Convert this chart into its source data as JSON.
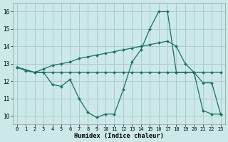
{
  "xlabel": "Humidex (Indice chaleur)",
  "background_color": "#cce8e8",
  "grid_color": "#aacccc",
  "line_color": "#1a7060",
  "xlim": [
    -0.5,
    23.5
  ],
  "ylim": [
    9.5,
    16.5
  ],
  "xticks": [
    0,
    1,
    2,
    3,
    4,
    5,
    6,
    7,
    8,
    9,
    10,
    11,
    12,
    13,
    14,
    15,
    16,
    17,
    18,
    19,
    20,
    21,
    22,
    23
  ],
  "yticks": [
    10,
    11,
    12,
    13,
    14,
    15,
    16
  ],
  "line1_x": [
    0,
    1,
    2,
    3,
    4,
    5,
    6,
    7,
    8,
    9,
    10,
    11,
    12,
    13,
    14,
    15,
    16,
    17,
    18,
    19,
    20,
    21,
    22,
    23
  ],
  "line1_y": [
    12.8,
    12.6,
    12.5,
    12.5,
    12.5,
    12.5,
    12.5,
    12.5,
    12.5,
    12.5,
    12.5,
    12.5,
    12.5,
    12.5,
    12.5,
    12.5,
    12.5,
    12.5,
    12.5,
    12.5,
    12.5,
    12.5,
    12.5,
    12.5
  ],
  "line2_x": [
    0,
    2,
    3,
    4,
    5,
    6,
    7,
    8,
    9,
    10,
    11,
    12,
    13,
    14,
    15,
    16,
    17,
    18,
    20,
    21,
    22,
    23
  ],
  "line2_y": [
    12.8,
    12.5,
    12.5,
    11.8,
    11.7,
    12.1,
    11.0,
    10.2,
    9.9,
    10.1,
    10.1,
    11.5,
    13.1,
    13.8,
    15.0,
    16.0,
    16.0,
    12.5,
    12.5,
    11.9,
    11.9,
    10.1
  ],
  "line3_x": [
    0,
    2,
    3,
    4,
    5,
    6,
    7,
    8,
    9,
    10,
    11,
    12,
    13,
    14,
    15,
    16,
    17,
    18,
    19,
    20,
    21,
    22,
    23
  ],
  "line3_y": [
    12.8,
    12.5,
    12.7,
    12.9,
    13.0,
    13.1,
    13.3,
    13.4,
    13.5,
    13.6,
    13.7,
    13.8,
    13.9,
    14.0,
    14.1,
    14.2,
    14.3,
    14.0,
    13.0,
    12.5,
    10.3,
    10.1,
    10.1
  ]
}
